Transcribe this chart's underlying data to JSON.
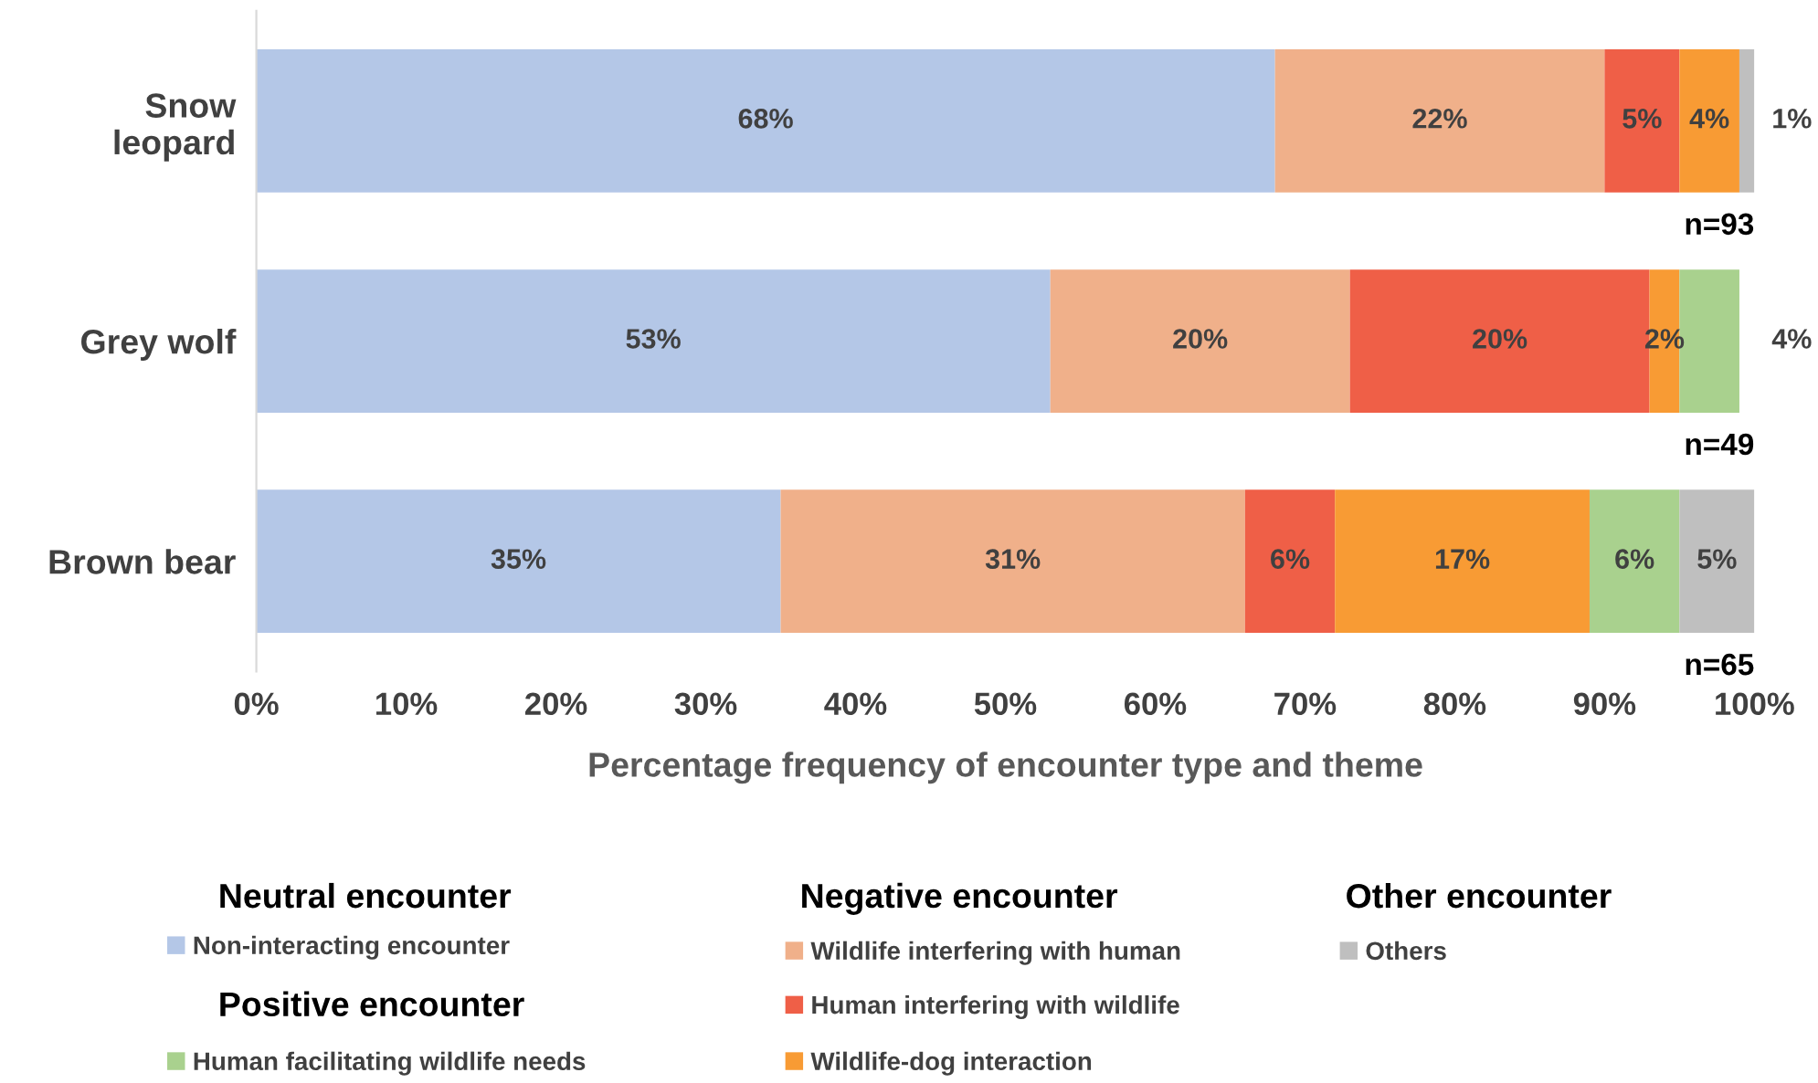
{
  "chart_data": {
    "type": "bar",
    "orientation": "horizontal",
    "stacked": true,
    "categories": [
      "Snow\nleopard",
      "Grey wolf",
      "Brown bear"
    ],
    "xlabel": "Percentage frequency of encounter type and theme",
    "xlim": [
      0,
      100
    ],
    "xticks": [
      {
        "value": 0,
        "label": "0%"
      },
      {
        "value": 10,
        "label": "10%"
      },
      {
        "value": 20,
        "label": "20%"
      },
      {
        "value": 30,
        "label": "30%"
      },
      {
        "value": 40,
        "label": "40%"
      },
      {
        "value": 50,
        "label": "50%"
      },
      {
        "value": 60,
        "label": "60%"
      },
      {
        "value": 70,
        "label": "70%"
      },
      {
        "value": 80,
        "label": "80%"
      },
      {
        "value": 90,
        "label": "90%"
      },
      {
        "value": 100,
        "label": "100%"
      }
    ],
    "grid": false,
    "legend": "bottom",
    "series": [
      {
        "name": "Non-interacting encounter",
        "color": "#b4c7e7",
        "values": [
          68,
          53,
          35
        ],
        "value_labels": [
          "68%",
          "53%",
          "35%"
        ]
      },
      {
        "name": "Wildlife interfering with human",
        "color": "#f0b08a",
        "values": [
          22,
          20,
          31
        ],
        "value_labels": [
          "22%",
          "20%",
          "31%"
        ]
      },
      {
        "name": "Human interfering with wildlife",
        "color": "#ef5f47",
        "values": [
          5,
          20,
          6
        ],
        "value_labels": [
          "5%",
          "20%",
          "6%"
        ]
      },
      {
        "name": "Wildlife-dog interaction",
        "color": "#f89b34",
        "values": [
          4,
          2,
          17
        ],
        "value_labels": [
          "4%",
          "2%",
          "17%"
        ]
      },
      {
        "name": "Human facilitating wildlife needs",
        "color": "#a9d18e",
        "values": [
          null,
          4,
          6
        ],
        "value_labels": [
          null,
          "4%",
          "6%"
        ]
      },
      {
        "name": "Others",
        "color": "#bfbfbf",
        "values": [
          1,
          null,
          5
        ],
        "value_labels": [
          "1%",
          null,
          "5%"
        ]
      }
    ],
    "annotations": [
      "n=93",
      "n=49",
      "n=65",
      "Neutral encounter",
      "Negative encounter",
      "Other encounter",
      "Positive encounter"
    ]
  }
}
